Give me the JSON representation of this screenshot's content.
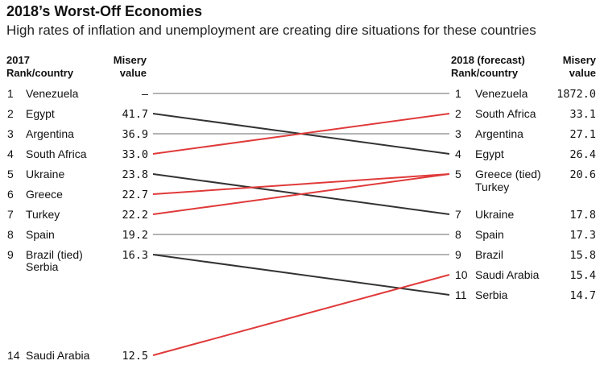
{
  "title": "2018’s Worst-Off Economies",
  "subtitle": "High rates of inflation and unemployment are creating dire situations for these countries",
  "headers": {
    "left_rank": [
      "2017",
      "Rank/country"
    ],
    "left_value": [
      "Misery",
      "value"
    ],
    "right_rank": [
      "2018 (forecast)",
      "Rank/country"
    ],
    "right_value": [
      "Misery",
      "value"
    ]
  },
  "colors": {
    "worse": "#e03a3a",
    "better": "#333333",
    "same": "#b3b3b3"
  },
  "chart_data": {
    "type": "slope",
    "title": "2018’s Worst-Off Economies",
    "subtitle": "High rates of inflation and unemployment are creating dire situations for these countries",
    "left_column": [
      {
        "rank": "1",
        "label": "Venezuela",
        "value": "–"
      },
      {
        "rank": "2",
        "label": "Egypt",
        "value": "41.7"
      },
      {
        "rank": "3",
        "label": "Argentina",
        "value": "36.9"
      },
      {
        "rank": "4",
        "label": "South Africa",
        "value": "33.0"
      },
      {
        "rank": "5",
        "label": "Ukraine",
        "value": "23.8"
      },
      {
        "rank": "6",
        "label": "Greece",
        "value": "22.7"
      },
      {
        "rank": "7",
        "label": "Turkey",
        "value": "22.2"
      },
      {
        "rank": "8",
        "label": "Spain",
        "value": "19.2"
      },
      {
        "rank": "9",
        "label": "Brazil (tied)",
        "label2": "Serbia",
        "value": "16.3"
      },
      {
        "rank": "14",
        "label": "Saudi Arabia",
        "value": "12.5"
      }
    ],
    "right_column": [
      {
        "rank": "1",
        "label": "Venezuela",
        "value": "1872.0"
      },
      {
        "rank": "2",
        "label": "South Africa",
        "value": "33.1"
      },
      {
        "rank": "3",
        "label": "Argentina",
        "value": "27.1"
      },
      {
        "rank": "4",
        "label": "Egypt",
        "value": "26.4"
      },
      {
        "rank": "5",
        "label": "Greece (tied)",
        "label2": "Turkey",
        "value": "20.6"
      },
      {
        "rank": "7",
        "label": "Ukraine",
        "value": "17.8"
      },
      {
        "rank": "8",
        "label": "Spain",
        "value": "17.3"
      },
      {
        "rank": "9",
        "label": "Brazil",
        "value": "15.8"
      },
      {
        "rank": "10",
        "label": "Saudi Arabia",
        "value": "15.4"
      },
      {
        "rank": "11",
        "label": "Serbia",
        "value": "14.7"
      }
    ],
    "links": [
      {
        "country": "Venezuela",
        "from_rank": 1,
        "to_rank": 1,
        "change": "same"
      },
      {
        "country": "Egypt",
        "from_rank": 2,
        "to_rank": 4,
        "change": "better"
      },
      {
        "country": "Argentina",
        "from_rank": 3,
        "to_rank": 3,
        "change": "same"
      },
      {
        "country": "South Africa",
        "from_rank": 4,
        "to_rank": 2,
        "change": "worse"
      },
      {
        "country": "Ukraine",
        "from_rank": 5,
        "to_rank": 7,
        "change": "better"
      },
      {
        "country": "Greece",
        "from_rank": 6,
        "to_rank": 5,
        "change": "worse"
      },
      {
        "country": "Turkey",
        "from_rank": 7,
        "to_rank": 5,
        "change": "worse"
      },
      {
        "country": "Spain",
        "from_rank": 8,
        "to_rank": 8,
        "change": "same"
      },
      {
        "country": "Brazil",
        "from_rank": 9,
        "to_rank": 9,
        "change": "same"
      },
      {
        "country": "Serbia",
        "from_rank": 9,
        "to_rank": 11,
        "change": "better"
      },
      {
        "country": "Saudi Arabia",
        "from_rank": 14,
        "to_rank": 10,
        "change": "worse"
      }
    ]
  }
}
